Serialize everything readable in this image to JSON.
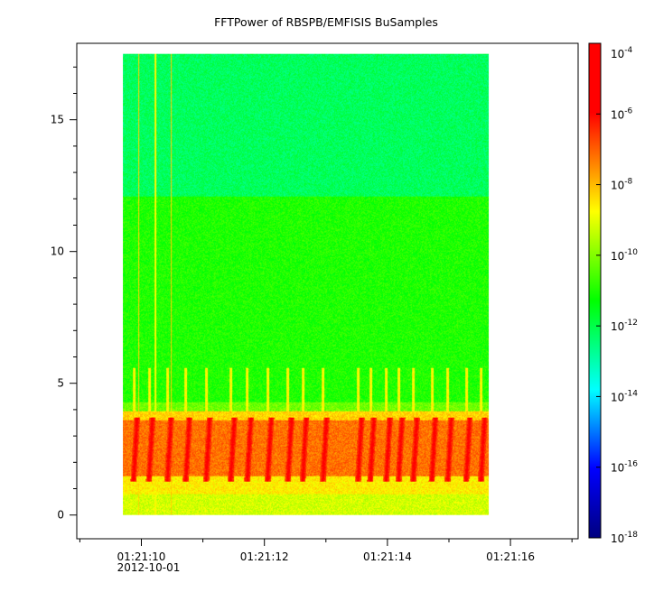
{
  "chart_data": {
    "type": "heatmap",
    "title": "FFTPower of RBSPB/EMFISIS  BuSamples",
    "xlabel": "",
    "ylabel": "",
    "x_axis": {
      "type": "time",
      "date_label": "2012-10-01",
      "range_seconds": [
        8.95,
        17.1
      ],
      "major_ticks": [
        {
          "t": 10,
          "label": "01:21:10"
        },
        {
          "t": 12,
          "label": "01:21:12"
        },
        {
          "t": 14,
          "label": "01:21:14"
        },
        {
          "t": 16,
          "label": "01:21:16"
        }
      ],
      "minor_ticks": [
        9,
        11,
        13,
        15,
        17
      ]
    },
    "y_axis": {
      "range": [
        -0.9,
        17.9
      ],
      "major_ticks": [
        {
          "v": 0,
          "label": "0"
        },
        {
          "v": 5,
          "label": "5"
        },
        {
          "v": 10,
          "label": "10"
        },
        {
          "v": 15,
          "label": "15"
        }
      ],
      "minor_ticks": [
        1,
        2,
        3,
        4,
        6,
        7,
        8,
        9,
        11,
        12,
        13,
        14,
        16,
        17
      ]
    },
    "data_extent": {
      "x_seconds": [
        9.7,
        15.65
      ],
      "y": [
        0,
        17.5
      ]
    },
    "colorbar": {
      "scale": "log",
      "range_exp": [
        -18,
        -4
      ],
      "ticks": [
        {
          "exp": -4,
          "base": "10",
          "sup": "-4"
        },
        {
          "exp": -6,
          "base": "10",
          "sup": "-6"
        },
        {
          "exp": -8,
          "base": "10",
          "sup": "-8"
        },
        {
          "exp": -10,
          "base": "10",
          "sup": "-10"
        },
        {
          "exp": -12,
          "base": "10",
          "sup": "-12"
        },
        {
          "exp": -14,
          "base": "10",
          "sup": "-14"
        },
        {
          "exp": -16,
          "base": "10",
          "sup": "-16"
        },
        {
          "exp": -18,
          "base": "10",
          "sup": "-18"
        }
      ],
      "colors": [
        "#00007f",
        "#0000ff",
        "#00ffff",
        "#00ff00",
        "#ffff00",
        "#ff0000",
        "#ff0000"
      ]
    },
    "bands": [
      {
        "y": [
          12.1,
          17.5
        ],
        "level": -12.2
      },
      {
        "y": [
          4.3,
          12.1
        ],
        "level": -11.0
      },
      {
        "y": [
          3.95,
          4.3
        ],
        "level": -10.2
      },
      {
        "y": [
          3.6,
          3.95
        ],
        "level": -8.3
      },
      {
        "y": [
          1.5,
          3.6
        ],
        "level": -7.2
      },
      {
        "y": [
          0.8,
          1.5
        ],
        "level": -8.6
      },
      {
        "y": [
          0.0,
          0.8
        ],
        "level": -9.2
      }
    ],
    "vertical_lines": [
      {
        "t": 9.95,
        "level": -8.3
      },
      {
        "t": 10.22,
        "level": -8.8
      },
      {
        "t": 10.48,
        "level": -8.2
      }
    ],
    "bursts": [
      {
        "t": 9.87
      },
      {
        "t": 10.12
      },
      {
        "t": 10.42
      },
      {
        "t": 10.72
      },
      {
        "t": 11.05
      },
      {
        "t": 11.45
      },
      {
        "t": 11.72
      },
      {
        "t": 12.05
      },
      {
        "t": 12.38
      },
      {
        "t": 12.62
      },
      {
        "t": 12.95
      },
      {
        "t": 13.52
      },
      {
        "t": 13.72
      },
      {
        "t": 13.98
      },
      {
        "t": 14.18
      },
      {
        "t": 14.42
      },
      {
        "t": 14.72
      },
      {
        "t": 14.98
      },
      {
        "t": 15.28
      },
      {
        "t": 15.52
      }
    ]
  }
}
